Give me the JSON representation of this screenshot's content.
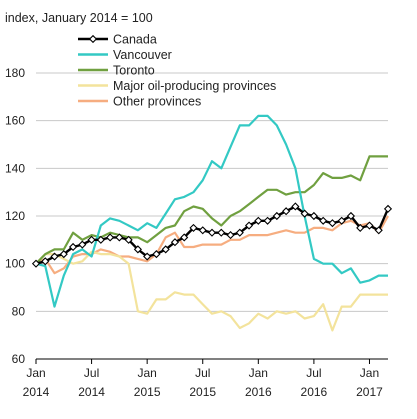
{
  "chart_data": {
    "type": "line",
    "ylabel": "index, January 2014 = 100",
    "ylim": [
      60,
      180
    ],
    "yticks": [
      60,
      80,
      100,
      120,
      140,
      160,
      180
    ],
    "xlim": [
      0,
      38
    ],
    "xticks": [
      {
        "x": 0,
        "line1": "Jan",
        "line2": "2014"
      },
      {
        "x": 6,
        "line1": "Jul",
        "line2": "2014"
      },
      {
        "x": 12,
        "line1": "Jan",
        "line2": "2015"
      },
      {
        "x": 18,
        "line1": "Jul",
        "line2": "2015"
      },
      {
        "x": 24,
        "line1": "Jan",
        "line2": "2016"
      },
      {
        "x": 30,
        "line1": "Jul",
        "line2": "2016"
      },
      {
        "x": 36,
        "line1": "Jan",
        "line2": "2017"
      }
    ],
    "grid": "horizontal",
    "legend_position": "top-left",
    "series": [
      {
        "name": "Canada",
        "color": "#000000",
        "markers": "diamond",
        "values": [
          100,
          101,
          103,
          104,
          107,
          108,
          110,
          110,
          111,
          111,
          110,
          106,
          103,
          104,
          106,
          109,
          111,
          115,
          114,
          113,
          113,
          112,
          113,
          116,
          118,
          118,
          120,
          122,
          124,
          121,
          120,
          118,
          117,
          118,
          120,
          115,
          116,
          114,
          123
        ]
      },
      {
        "name": "Vancouver",
        "color": "#33c9c4",
        "values": [
          100,
          99,
          82,
          95,
          104,
          106,
          103,
          116,
          119,
          118,
          116,
          114,
          117,
          115,
          121,
          127,
          128,
          130,
          135,
          143,
          140,
          149,
          158,
          158,
          162,
          162,
          158,
          150,
          140,
          120,
          102,
          100,
          100,
          96,
          98,
          92,
          93,
          95,
          95
        ]
      },
      {
        "name": "Toronto",
        "color": "#70a040",
        "values": [
          100,
          104,
          106,
          106,
          113,
          110,
          112,
          111,
          113,
          112,
          111,
          111,
          109,
          112,
          115,
          116,
          122,
          124,
          123,
          119,
          116,
          120,
          122,
          125,
          128,
          131,
          131,
          129,
          130,
          130,
          133,
          138,
          136,
          136,
          137,
          135,
          145,
          145,
          145
        ]
      },
      {
        "name": "Major oil-producing provinces",
        "color": "#f3e39c",
        "values": [
          100,
          104,
          104,
          102,
          100,
          101,
          105,
          104,
          104,
          103,
          100,
          80,
          79,
          85,
          85,
          88,
          87,
          87,
          83,
          79,
          80,
          78,
          73,
          75,
          79,
          77,
          80,
          79,
          80,
          77,
          78,
          83,
          72,
          82,
          82,
          87,
          87,
          87,
          87
        ]
      },
      {
        "name": "Other provinces",
        "color": "#f6ad80",
        "values": [
          100,
          102,
          96,
          98,
          103,
          104,
          104,
          106,
          105,
          103,
          103,
          102,
          101,
          104,
          111,
          113,
          107,
          107,
          108,
          108,
          108,
          110,
          110,
          112,
          112,
          112,
          113,
          114,
          113,
          113,
          115,
          115,
          114,
          117,
          118,
          116,
          117,
          113,
          120
        ]
      }
    ]
  }
}
